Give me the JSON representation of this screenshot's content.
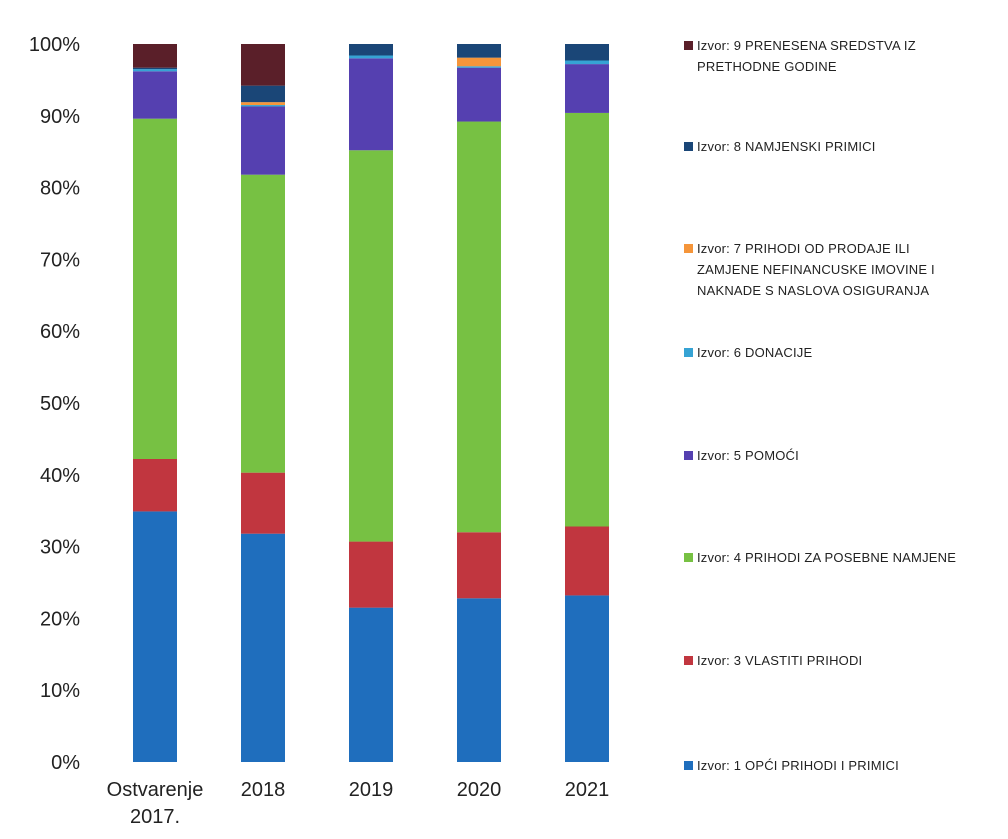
{
  "chart_data": {
    "type": "bar",
    "stacked": true,
    "normalized": true,
    "categories": [
      "Ostvarenje 2017.",
      "2018",
      "2019",
      "2020",
      "2021"
    ],
    "ylim": [
      0,
      100
    ],
    "yticks": [
      "0%",
      "10%",
      "20%",
      "30%",
      "40%",
      "50%",
      "60%",
      "70%",
      "80%",
      "90%",
      "100%"
    ],
    "grid": false,
    "legend_position": "right",
    "series": [
      {
        "name": "Izvor: 1 OPĆI PRIHODI I PRIMICI",
        "color": "#1f6ebd",
        "values": [
          34.9,
          31.8,
          21.5,
          22.8,
          23.2
        ]
      },
      {
        "name": "Izvor: 3 VLASTITI PRIHODI",
        "color": "#c1363f",
        "values": [
          7.3,
          8.5,
          9.2,
          9.2,
          9.6
        ]
      },
      {
        "name": "Izvor: 4 PRIHODI ZA POSEBNE NAMJENE",
        "color": "#77c143",
        "values": [
          47.4,
          41.5,
          54.5,
          57.2,
          57.6
        ]
      },
      {
        "name": "Izvor: 5 POMOĆI",
        "color": "#5540b0",
        "values": [
          6.6,
          9.5,
          12.8,
          7.5,
          6.8
        ]
      },
      {
        "name": "Izvor: 6 DONACIJE",
        "color": "#36a3d4",
        "values": [
          0.3,
          0.2,
          0.4,
          0.2,
          0.5
        ]
      },
      {
        "name": "Izvor: 7 PRIHODI OD PRODAJE ILI ZAMJENE NEFINANCIJSKE IMOVINE I NAKNADE S NASLOVA OSIGURANJA",
        "color": "#f5953a",
        "values": [
          0.0,
          0.4,
          0.0,
          1.2,
          0.0
        ]
      },
      {
        "name": "Izvor: 8 NAMJENSKI PRIMICI",
        "color": "#1a4677",
        "values": [
          0.2,
          2.3,
          1.6,
          1.9,
          2.3
        ]
      },
      {
        "name": "Izvor: 9 PRENESENA SREDSTVA IZ PRETHODNE GODINE",
        "color": "#5a1f29",
        "values": [
          3.3,
          5.8,
          0.0,
          0.0,
          0.0
        ]
      }
    ]
  },
  "legend": [
    {
      "label": "Izvor: 9 PRENESENA SREDSTVA IZ\nPRETHODNE GODINE",
      "color": "#5a1f29"
    },
    {
      "label": "Izvor: 8 NAMJENSKI PRIMICI",
      "color": "#1a4677"
    },
    {
      "label": "Izvor: 7 PRIHODI OD PRODAJE ILI\nZAMJENE NEFINANCUSKE IMOVINE I\nNAKNADE S NASLOVA OSIGURANJA",
      "color": "#f5953a"
    },
    {
      "label": "Izvor: 6 DONACIJE",
      "color": "#36a3d4"
    },
    {
      "label": "Izvor: 5 POMOĆI",
      "color": "#5540b0"
    },
    {
      "label": "Izvor: 4 PRIHODI ZA POSEBNE NAMJENE",
      "color": "#77c143"
    },
    {
      "label": "Izvor: 3 VLASTITI PRIHODI",
      "color": "#c1363f"
    },
    {
      "label": "Izvor: 1 OPĆI PRIHODI I PRIMICI",
      "color": "#1f6ebd"
    }
  ]
}
